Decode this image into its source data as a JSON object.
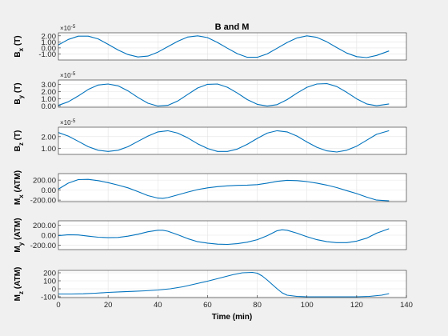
{
  "figure": {
    "background": "#f0f0f0",
    "axes_background": "#ffffff",
    "line_color": "#0072bd",
    "grid_color": "#e3e3e3"
  },
  "chart_data": [
    {
      "type": "line",
      "title": "B and M",
      "ylabel": "B_x (T)",
      "ylabel_main": "B",
      "ylabel_sub": "x",
      "ylabel_unit": "(T)",
      "exponent_label": "×10",
      "exponent_value": "-5",
      "ylim": [
        -2,
        2.5
      ],
      "yticks": [
        2,
        1,
        0,
        -1
      ],
      "yticklabels": [
        "2.00",
        "1.00",
        "0.00",
        "-1.00"
      ],
      "xlim": [
        0,
        140
      ],
      "grid": true,
      "series": [
        {
          "x": [
            0,
            4,
            8,
            12,
            16,
            20,
            24,
            28,
            32,
            36,
            40,
            44,
            48,
            52,
            56,
            60,
            64,
            68,
            72,
            76,
            80,
            84,
            88,
            92,
            96,
            100,
            104,
            108,
            112,
            116,
            120,
            124,
            128,
            133
          ],
          "y": [
            0.5,
            1.4,
            1.95,
            1.95,
            1.5,
            0.6,
            -0.35,
            -1.1,
            -1.5,
            -1.35,
            -0.7,
            0.2,
            1.1,
            1.8,
            2.0,
            1.7,
            0.9,
            -0.05,
            -0.95,
            -1.55,
            -1.55,
            -1.0,
            -0.05,
            0.9,
            1.65,
            2.0,
            1.75,
            1.0,
            0.05,
            -0.85,
            -1.45,
            -1.6,
            -1.25,
            -0.5
          ]
        }
      ]
    },
    {
      "type": "line",
      "ylabel": "B_y (T)",
      "ylabel_main": "B",
      "ylabel_sub": "y",
      "ylabel_unit": "(T)",
      "exponent_label": "×10",
      "exponent_value": "-5",
      "ylim": [
        -0.15,
        3.6
      ],
      "yticks": [
        3,
        2,
        1,
        0
      ],
      "yticklabels": [
        "3.00",
        "2.00",
        "1.00",
        "0.00"
      ],
      "xlim": [
        0,
        140
      ],
      "grid": true,
      "series": [
        {
          "x": [
            0,
            4,
            8,
            12,
            16,
            20,
            24,
            28,
            32,
            36,
            40,
            44,
            48,
            52,
            56,
            60,
            64,
            68,
            72,
            76,
            80,
            84,
            88,
            92,
            96,
            100,
            104,
            108,
            112,
            116,
            120,
            124,
            128,
            133
          ],
          "y": [
            0.1,
            0.6,
            1.4,
            2.3,
            2.9,
            3.05,
            2.8,
            2.1,
            1.2,
            0.4,
            0.0,
            0.1,
            0.7,
            1.6,
            2.5,
            3.0,
            3.05,
            2.6,
            1.8,
            0.9,
            0.25,
            0.0,
            0.2,
            0.9,
            1.8,
            2.6,
            3.05,
            3.1,
            2.7,
            1.9,
            1.0,
            0.3,
            0.05,
            0.3
          ]
        }
      ]
    },
    {
      "type": "line",
      "ylabel": "B_z (T)",
      "ylabel_main": "B",
      "ylabel_sub": "z",
      "ylabel_unit": "(T)",
      "exponent_label": "×10",
      "exponent_value": "-5",
      "ylim": [
        0.5,
        2.8
      ],
      "yticks": [
        2,
        1
      ],
      "yticklabels": [
        "2.00",
        "1.00"
      ],
      "xlim": [
        0,
        140
      ],
      "grid": true,
      "series": [
        {
          "x": [
            0,
            4,
            8,
            12,
            16,
            20,
            24,
            28,
            32,
            36,
            40,
            44,
            48,
            52,
            56,
            60,
            64,
            68,
            72,
            76,
            80,
            84,
            88,
            92,
            96,
            100,
            104,
            108,
            112,
            116,
            120,
            124,
            128,
            133
          ],
          "y": [
            2.35,
            2.05,
            1.6,
            1.15,
            0.85,
            0.75,
            0.85,
            1.15,
            1.6,
            2.05,
            2.4,
            2.5,
            2.3,
            1.9,
            1.4,
            1.0,
            0.75,
            0.75,
            0.95,
            1.35,
            1.85,
            2.3,
            2.5,
            2.4,
            2.05,
            1.55,
            1.1,
            0.8,
            0.7,
            0.85,
            1.2,
            1.7,
            2.2,
            2.5
          ]
        }
      ]
    },
    {
      "type": "line",
      "ylabel": "M_x (ATM)",
      "ylabel_main": "M",
      "ylabel_sub": "x",
      "ylabel_unit": "(ATM)",
      "ylim": [
        -230,
        330
      ],
      "yticks": [
        200,
        0,
        -200
      ],
      "yticklabels": [
        "200.00",
        "0.00",
        "-200.00"
      ],
      "xlim": [
        0,
        140
      ],
      "grid": true,
      "series": [
        {
          "x": [
            0,
            4,
            8,
            12,
            16,
            20,
            24,
            28,
            32,
            36,
            40,
            42,
            44,
            48,
            52,
            56,
            60,
            64,
            68,
            72,
            76,
            80,
            84,
            88,
            92,
            96,
            100,
            104,
            108,
            112,
            116,
            120,
            124,
            128,
            133
          ],
          "y": [
            20,
            140,
            210,
            215,
            190,
            150,
            100,
            45,
            -30,
            -110,
            -160,
            -165,
            -150,
            -95,
            -40,
            10,
            45,
            70,
            85,
            95,
            100,
            110,
            140,
            175,
            195,
            190,
            170,
            140,
            100,
            50,
            -10,
            -70,
            -140,
            -200,
            -215
          ]
        }
      ]
    },
    {
      "type": "line",
      "ylabel": "M_y (ATM)",
      "ylabel_main": "M",
      "ylabel_sub": "y",
      "ylabel_unit": "(ATM)",
      "ylim": [
        -290,
        290
      ],
      "yticks": [
        200,
        0,
        -200
      ],
      "yticklabels": [
        "200.00",
        "0.00",
        "-200.00"
      ],
      "xlim": [
        0,
        140
      ],
      "grid": true,
      "series": [
        {
          "x": [
            0,
            4,
            8,
            12,
            16,
            20,
            24,
            28,
            32,
            36,
            40,
            42,
            44,
            48,
            52,
            56,
            60,
            64,
            68,
            72,
            76,
            80,
            84,
            88,
            90,
            92,
            96,
            100,
            104,
            108,
            112,
            116,
            120,
            124,
            128,
            133
          ],
          "y": [
            -10,
            10,
            5,
            -20,
            -40,
            -50,
            -45,
            -20,
            20,
            70,
            100,
            100,
            80,
            10,
            -70,
            -130,
            -160,
            -180,
            -185,
            -170,
            -140,
            -90,
            -10,
            90,
            110,
            100,
            40,
            -30,
            -90,
            -130,
            -150,
            -150,
            -120,
            -60,
            40,
            130
          ]
        }
      ]
    },
    {
      "type": "line",
      "ylabel": "M_z (ATM)",
      "ylabel_main": "M",
      "ylabel_sub": "z",
      "ylabel_unit": "(ATM)",
      "xlabel": "Time (min)",
      "ylim": [
        -110,
        230
      ],
      "yticks": [
        200,
        100,
        0,
        -100
      ],
      "yticklabels": [
        "200",
        "100",
        "0",
        "-100"
      ],
      "xlim": [
        0,
        140
      ],
      "xticks": [
        0,
        20,
        40,
        60,
        80,
        100,
        120,
        140
      ],
      "xticklabels": [
        "0",
        "20",
        "40",
        "60",
        "80",
        "100",
        "120",
        "140"
      ],
      "grid": true,
      "series": [
        {
          "x": [
            0,
            5,
            10,
            15,
            20,
            25,
            30,
            35,
            40,
            45,
            50,
            55,
            60,
            65,
            70,
            74,
            78,
            80,
            82,
            84,
            86,
            88,
            90,
            92,
            96,
            100,
            105,
            110,
            115,
            120,
            125,
            130,
            133
          ],
          "y": [
            -65,
            -65,
            -62,
            -55,
            -45,
            -38,
            -32,
            -25,
            -15,
            0,
            25,
            60,
            95,
            135,
            175,
            200,
            205,
            195,
            160,
            110,
            55,
            0,
            -50,
            -80,
            -95,
            -100,
            -100,
            -100,
            -100,
            -100,
            -95,
            -80,
            -60
          ]
        }
      ]
    }
  ]
}
